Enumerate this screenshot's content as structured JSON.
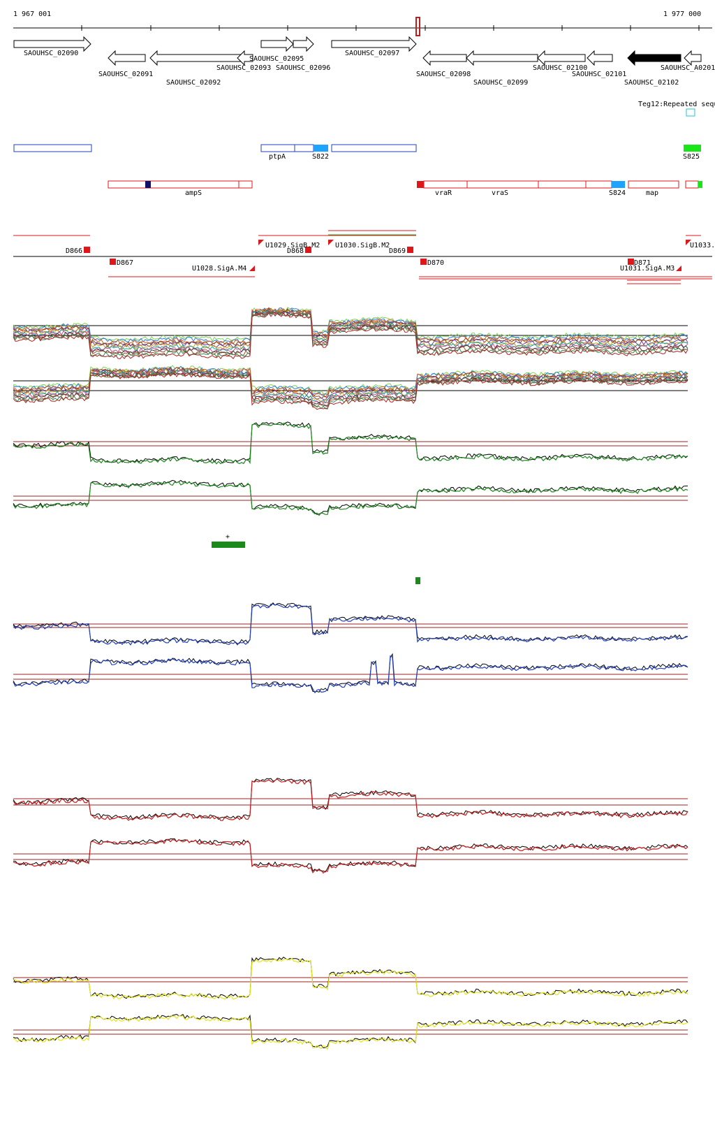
{
  "ruler": {
    "start": "1 967 001",
    "end": "1 977 000"
  },
  "genes": [
    {
      "label": "SAOUHSC_02090",
      "strand": "+",
      "filled": false
    },
    {
      "label": "SAOUHSC_02091",
      "strand": "-",
      "filled": false
    },
    {
      "label": "SAOUHSC_02092",
      "strand": "-",
      "filled": false
    },
    {
      "label": "SAOUHSC_02093",
      "strand": "-",
      "filled": false
    },
    {
      "label": "SAOUHSC_02095",
      "strand": "+",
      "filled": false
    },
    {
      "label": "SAOUHSC_02096",
      "strand": "+",
      "filled": false
    },
    {
      "label": "SAOUHSC_02097",
      "strand": "+",
      "filled": false
    },
    {
      "label": "SAOUHSC_02098",
      "strand": "-",
      "filled": false
    },
    {
      "label": "SAOUHSC_02099",
      "strand": "-",
      "filled": false
    },
    {
      "label": "SAOUHSC_02100",
      "strand": "-",
      "filled": false
    },
    {
      "label": "SAOUHSC_02101",
      "strand": "-",
      "filled": false
    },
    {
      "label": "SAOUHSC_02102",
      "strand": "-",
      "filled": true
    },
    {
      "label": "SAOUHSC_A0201",
      "strand": "-",
      "filled": false
    }
  ],
  "repeat_label": "Teg12:Repeated sequ",
  "plus_features": [
    "ptpA",
    "S822",
    "S825"
  ],
  "minus_features": [
    "ampS",
    "vraR",
    "vraS",
    "S824",
    "map"
  ],
  "segments": [
    "D866",
    "D867",
    "D868",
    "D869",
    "D870",
    "D871"
  ],
  "promoters": [
    "U1029.SigB.M2",
    "U1030.SigB.M2",
    "U1028.SigA.M4",
    "U1031.SigA.M3",
    "U1033."
  ],
  "peak_label": "+",
  "colors": {
    "gene_filled": "#000000",
    "feature_plus": "#1f3fbf",
    "feature_minus": "#e0161b",
    "feature_cyan": "#1ea4ff",
    "feature_green": "#19e619",
    "track_green": "#1a8a1a",
    "track_blue": "#1f3fbf",
    "track_red": "#cc1a1a",
    "track_yellow": "#e6e619",
    "baseline": "#a02020"
  }
}
